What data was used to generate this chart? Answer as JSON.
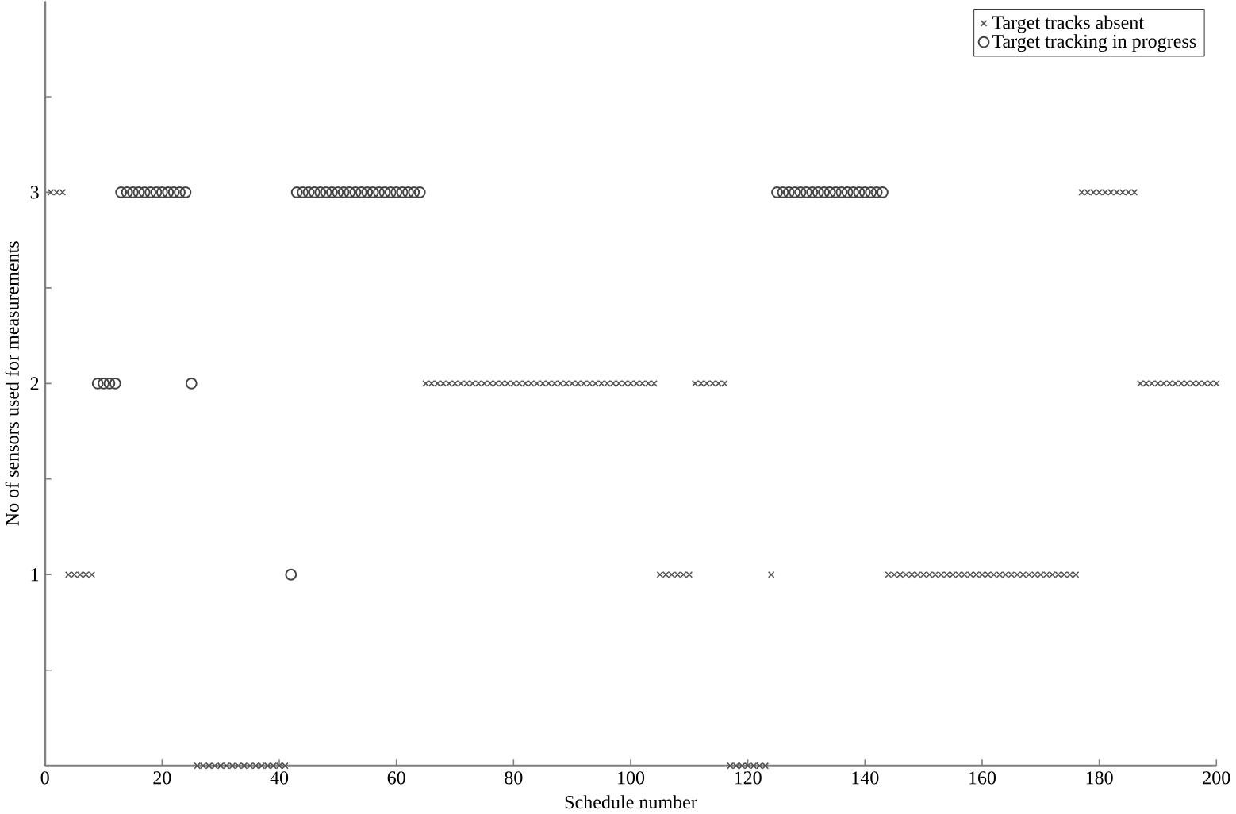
{
  "chart_data": {
    "type": "scatter",
    "xlabel": "Schedule number",
    "ylabel": "No of sensors used for measurements",
    "xlim": [
      0,
      200
    ],
    "ylim": [
      0,
      4
    ],
    "xticks": [
      0,
      20,
      40,
      60,
      80,
      100,
      120,
      140,
      160,
      180,
      200
    ],
    "yticks": [
      {
        "value": 0.5,
        "label": null
      },
      1,
      {
        "value": 1.5,
        "label": null
      },
      2,
      {
        "value": 2.5,
        "label": null
      },
      3,
      {
        "value": 3.5,
        "label": null
      }
    ],
    "legend": "top right",
    "series": [
      {
        "name": "Target tracks absent",
        "color": "#555555",
        "marker": "cross",
        "x": [
          1,
          2,
          3,
          4,
          5,
          6,
          7,
          8,
          26,
          27,
          28,
          29,
          30,
          31,
          32,
          33,
          34,
          35,
          36,
          37,
          38,
          39,
          40,
          41,
          65,
          66,
          67,
          68,
          69,
          70,
          71,
          72,
          73,
          74,
          75,
          76,
          77,
          78,
          79,
          80,
          81,
          82,
          83,
          84,
          85,
          86,
          87,
          88,
          89,
          90,
          91,
          92,
          93,
          94,
          95,
          96,
          97,
          98,
          99,
          100,
          101,
          102,
          103,
          104,
          105,
          106,
          107,
          108,
          109,
          110,
          111,
          112,
          113,
          114,
          115,
          116,
          117,
          118,
          119,
          120,
          121,
          122,
          123,
          124,
          144,
          145,
          146,
          147,
          148,
          149,
          150,
          151,
          152,
          153,
          154,
          155,
          156,
          157,
          158,
          159,
          160,
          161,
          162,
          163,
          164,
          165,
          166,
          167,
          168,
          169,
          170,
          171,
          172,
          173,
          174,
          175,
          176,
          177,
          178,
          179,
          180,
          181,
          182,
          183,
          184,
          185,
          186,
          187,
          188,
          189,
          190,
          191,
          192,
          193,
          194,
          195,
          196,
          197,
          198,
          199,
          200
        ],
        "values": [
          3,
          3,
          3,
          1,
          1,
          1,
          1,
          1,
          0,
          0,
          0,
          0,
          0,
          0,
          0,
          0,
          0,
          0,
          0,
          0,
          0,
          0,
          0,
          0,
          2,
          2,
          2,
          2,
          2,
          2,
          2,
          2,
          2,
          2,
          2,
          2,
          2,
          2,
          2,
          2,
          2,
          2,
          2,
          2,
          2,
          2,
          2,
          2,
          2,
          2,
          2,
          2,
          2,
          2,
          2,
          2,
          2,
          2,
          2,
          2,
          2,
          2,
          2,
          2,
          1,
          1,
          1,
          1,
          1,
          1,
          2,
          2,
          2,
          2,
          2,
          2,
          0,
          0,
          0,
          0,
          0,
          0,
          0,
          1,
          1,
          1,
          1,
          1,
          1,
          1,
          1,
          1,
          1,
          1,
          1,
          1,
          1,
          1,
          1,
          1,
          1,
          1,
          1,
          1,
          1,
          1,
          1,
          1,
          1,
          1,
          1,
          1,
          1,
          1,
          1,
          1,
          1,
          3,
          3,
          3,
          3,
          3,
          3,
          3,
          3,
          3,
          3,
          2,
          2,
          2,
          2,
          2,
          2,
          2,
          2,
          2,
          2,
          2,
          2,
          2,
          2
        ]
      },
      {
        "name": "Target tracking in progress",
        "color": "#444444",
        "marker": "circle",
        "x": [
          9,
          10,
          11,
          12,
          13,
          14,
          15,
          16,
          17,
          18,
          19,
          20,
          21,
          22,
          23,
          24,
          25,
          42,
          43,
          44,
          45,
          46,
          47,
          48,
          49,
          50,
          51,
          52,
          53,
          54,
          55,
          56,
          57,
          58,
          59,
          60,
          61,
          62,
          63,
          64,
          125,
          126,
          127,
          128,
          129,
          130,
          131,
          132,
          133,
          134,
          135,
          136,
          137,
          138,
          139,
          140,
          141,
          142,
          143
        ],
        "values": [
          2,
          2,
          2,
          2,
          3,
          3,
          3,
          3,
          3,
          3,
          3,
          3,
          3,
          3,
          3,
          3,
          2,
          1,
          3,
          3,
          3,
          3,
          3,
          3,
          3,
          3,
          3,
          3,
          3,
          3,
          3,
          3,
          3,
          3,
          3,
          3,
          3,
          3,
          3,
          3,
          3,
          3,
          3,
          3,
          3,
          3,
          3,
          3,
          3,
          3,
          3,
          3,
          3,
          3,
          3,
          3,
          3,
          3,
          3
        ]
      }
    ]
  }
}
